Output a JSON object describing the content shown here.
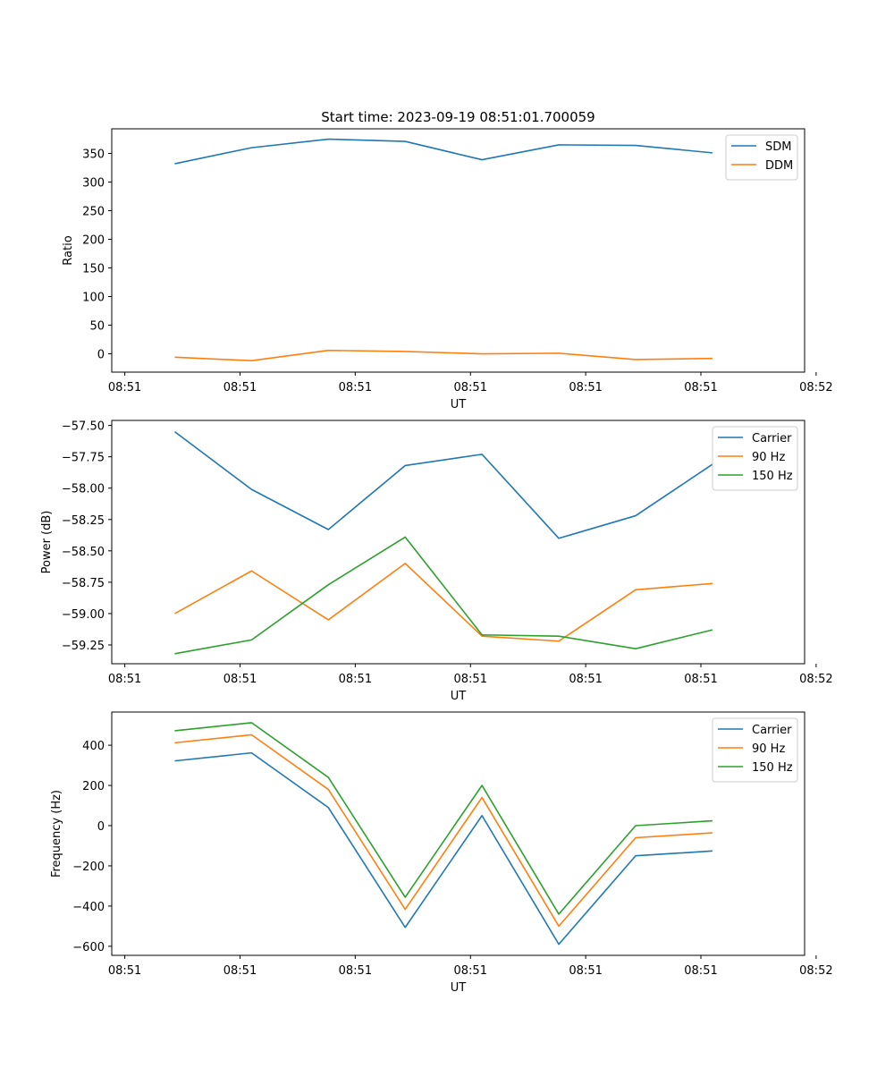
{
  "chart_data": [
    {
      "type": "line",
      "title": "Start time: 2023-09-19 08:51:01.700059",
      "xlabel": "UT",
      "ylabel": "Ratio",
      "x": [
        1,
        2,
        3,
        4,
        5,
        6,
        7,
        8
      ],
      "xlim": [
        0.18,
        9.2
      ],
      "xticks": [
        0.35,
        1.85,
        3.35,
        4.85,
        6.35,
        7.85,
        9.35
      ],
      "xtick_labels": [
        "08:51",
        "08:51",
        "08:51",
        "08:51",
        "08:51",
        "08:51",
        "08:52"
      ],
      "ylim": [
        -32,
        393
      ],
      "yticks": [
        0,
        50,
        100,
        150,
        200,
        250,
        300,
        350
      ],
      "ytick_labels": [
        "0",
        "50",
        "100",
        "150",
        "200",
        "250",
        "300",
        "350"
      ],
      "legend_position": "upper-right",
      "series": [
        {
          "name": "SDM",
          "color": "#1f77b4",
          "values": [
            332,
            360,
            375,
            371,
            339,
            365,
            364,
            351
          ]
        },
        {
          "name": "DDM",
          "color": "#ff7f0e",
          "values": [
            -6,
            -12,
            6,
            4,
            0,
            1,
            -10,
            -8
          ]
        }
      ]
    },
    {
      "type": "line",
      "title": "",
      "xlabel": "UT",
      "ylabel": "Power (dB)",
      "x": [
        1,
        2,
        3,
        4,
        5,
        6,
        7,
        8
      ],
      "xlim": [
        0.18,
        9.2
      ],
      "xticks": [
        0.35,
        1.85,
        3.35,
        4.85,
        6.35,
        7.85,
        9.35
      ],
      "xtick_labels": [
        "08:51",
        "08:51",
        "08:51",
        "08:51",
        "08:51",
        "08:51",
        "08:52"
      ],
      "ylim": [
        -59.4,
        -57.46
      ],
      "yticks": [
        -57.5,
        -57.75,
        -58.0,
        -58.25,
        -58.5,
        -58.75,
        -59.0,
        -59.25
      ],
      "ytick_labels": [
        "−57.50",
        "−57.75",
        "−58.00",
        "−58.25",
        "−58.50",
        "−58.75",
        "−59.00",
        "−59.25"
      ],
      "legend_position": "upper-right",
      "series": [
        {
          "name": "Carrier",
          "color": "#1f77b4",
          "values": [
            -57.55,
            -58.01,
            -58.33,
            -57.82,
            -57.73,
            -58.4,
            -58.22,
            -57.81
          ]
        },
        {
          "name": "90 Hz",
          "color": "#ff7f0e",
          "values": [
            -59.0,
            -58.66,
            -59.05,
            -58.6,
            -59.18,
            -59.22,
            -58.81,
            -58.76
          ]
        },
        {
          "name": "150 Hz",
          "color": "#2ca02c",
          "values": [
            -59.32,
            -59.21,
            -58.77,
            -58.39,
            -59.17,
            -59.18,
            -59.28,
            -59.13
          ]
        }
      ]
    },
    {
      "type": "line",
      "title": "",
      "xlabel": "UT",
      "ylabel": "Frequency (Hz)",
      "x": [
        1,
        2,
        3,
        4,
        5,
        6,
        7,
        8
      ],
      "xlim": [
        0.18,
        9.2
      ],
      "xticks": [
        0.35,
        1.85,
        3.35,
        4.85,
        6.35,
        7.85,
        9.35
      ],
      "xtick_labels": [
        "08:51",
        "08:51",
        "08:51",
        "08:51",
        "08:51",
        "08:51",
        "08:52"
      ],
      "ylim": [
        -645,
        565
      ],
      "yticks": [
        -600,
        -400,
        -200,
        0,
        200,
        400
      ],
      "ytick_labels": [
        "−600",
        "−400",
        "−200",
        "0",
        "200",
        "400"
      ],
      "legend_position": "upper-right",
      "series": [
        {
          "name": "Carrier",
          "color": "#1f77b4",
          "values": [
            322,
            362,
            90,
            -506,
            50,
            -590,
            -150,
            -126
          ]
        },
        {
          "name": "90 Hz",
          "color": "#ff7f0e",
          "values": [
            412,
            452,
            180,
            -416,
            140,
            -500,
            -60,
            -36
          ]
        },
        {
          "name": "150 Hz",
          "color": "#2ca02c",
          "values": [
            472,
            512,
            240,
            -356,
            200,
            -440,
            0,
            24
          ]
        }
      ]
    }
  ]
}
